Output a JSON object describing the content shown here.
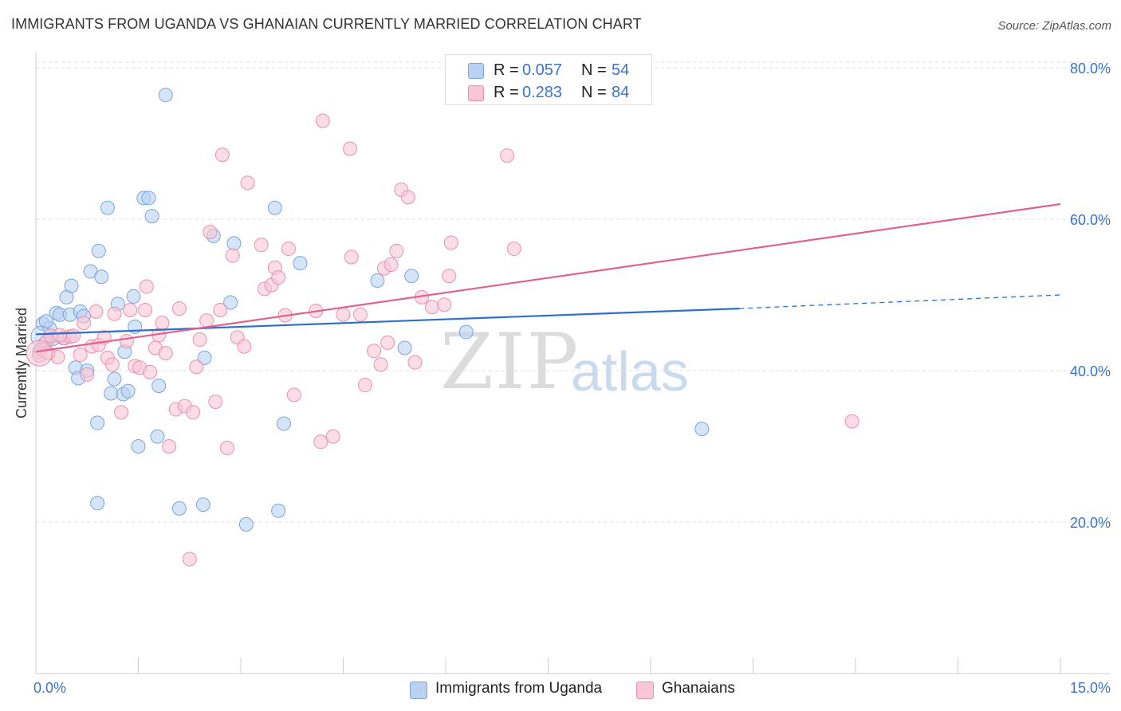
{
  "header": {
    "title": "IMMIGRANTS FROM UGANDA VS GHANAIAN CURRENTLY MARRIED CORRELATION CHART",
    "source": "Source: ZipAtlas.com"
  },
  "legend_top": {
    "rows": [
      {
        "r_label": "R =",
        "r_value": "0.057",
        "n_label": "N =",
        "n_value": "54"
      },
      {
        "r_label": "R =",
        "r_value": "0.283",
        "n_label": "N =",
        "n_value": "84"
      }
    ]
  },
  "legend_bottom": {
    "items": [
      "Immigrants from Uganda",
      "Ghanaians"
    ]
  },
  "watermark": {
    "zip": "ZIP",
    "atlas": "atlas"
  },
  "colors": {
    "uganda_fill": "#b9d2f2",
    "uganda_stroke": "#7aa6dc",
    "uganda_line": "#2e6fcc",
    "ghana_fill": "#f8c6d6",
    "ghana_stroke": "#ea90ae",
    "ghana_line": "#e0608e",
    "tick_label": "#3a74c8",
    "grid": "#dddddd"
  },
  "chart_data": {
    "type": "scatter",
    "title": "IMMIGRANTS FROM UGANDA VS GHANAIAN CURRENTLY MARRIED CORRELATION CHART",
    "xlabel": "",
    "ylabel": "Currently Married",
    "xlim": [
      0,
      15
    ],
    "ylim": [
      0,
      82
    ],
    "x_tick_labels": [
      "0.0%",
      "15.0%"
    ],
    "y_ticks": [
      20,
      40,
      60,
      80
    ],
    "y_tick_labels": [
      "20.0%",
      "40.0%",
      "60.0%",
      "80.0%"
    ],
    "grid": true,
    "legend_position": "top-center",
    "series": [
      {
        "name": "Immigrants from Uganda",
        "r": 0.057,
        "n": 54,
        "trend": {
          "x": [
            0,
            10.3
          ],
          "y": [
            44.8,
            48.2
          ],
          "dashed_to": [
            15,
            50
          ]
        },
        "points": [
          [
            0.05,
            42.5
          ],
          [
            0.1,
            46.2
          ],
          [
            0.12,
            43.5
          ],
          [
            0.2,
            45.6
          ],
          [
            0.25,
            44.2
          ],
          [
            0.3,
            47.6
          ],
          [
            0.35,
            47.4
          ],
          [
            0.4,
            44.3
          ],
          [
            0.45,
            49.7
          ],
          [
            0.5,
            47.4
          ],
          [
            0.52,
            51.2
          ],
          [
            0.58,
            40.4
          ],
          [
            0.62,
            39.0
          ],
          [
            0.65,
            47.8
          ],
          [
            0.7,
            47.2
          ],
          [
            0.75,
            40.0
          ],
          [
            0.8,
            53.1
          ],
          [
            0.9,
            33.1
          ],
          [
            0.92,
            55.8
          ],
          [
            0.96,
            52.4
          ],
          [
            1.05,
            61.5
          ],
          [
            1.1,
            37.0
          ],
          [
            1.15,
            38.9
          ],
          [
            1.2,
            48.8
          ],
          [
            1.28,
            36.9
          ],
          [
            1.3,
            42.5
          ],
          [
            1.35,
            37.3
          ],
          [
            1.43,
            49.8
          ],
          [
            1.45,
            45.8
          ],
          [
            1.5,
            30.0
          ],
          [
            1.58,
            62.8
          ],
          [
            1.65,
            62.8
          ],
          [
            1.7,
            60.4
          ],
          [
            1.78,
            31.3
          ],
          [
            1.8,
            38.0
          ],
          [
            1.9,
            76.4
          ],
          [
            0.9,
            22.5
          ],
          [
            2.1,
            21.8
          ],
          [
            2.45,
            22.3
          ],
          [
            2.47,
            41.7
          ],
          [
            2.6,
            57.8
          ],
          [
            2.85,
            49.0
          ],
          [
            2.9,
            56.8
          ],
          [
            3.08,
            19.7
          ],
          [
            3.5,
            61.5
          ],
          [
            3.55,
            21.5
          ],
          [
            3.63,
            33.0
          ],
          [
            3.87,
            54.2
          ],
          [
            5.0,
            51.9
          ],
          [
            5.4,
            43.0
          ],
          [
            5.5,
            52.5
          ],
          [
            6.3,
            45.1
          ],
          [
            9.75,
            32.3
          ],
          [
            0.15,
            46.5
          ]
        ]
      },
      {
        "name": "Ghanaians",
        "r": 0.283,
        "n": 84,
        "trend": {
          "x": [
            0,
            15
          ],
          "y": [
            42.5,
            62.0
          ]
        },
        "points": [
          [
            0.05,
            42.0
          ],
          [
            0.15,
            43.8
          ],
          [
            0.22,
            44.6
          ],
          [
            0.32,
            41.8
          ],
          [
            0.42,
            44.3
          ],
          [
            0.5,
            44.5
          ],
          [
            0.55,
            44.6
          ],
          [
            0.65,
            42.1
          ],
          [
            0.7,
            46.3
          ],
          [
            0.75,
            39.5
          ],
          [
            0.82,
            43.2
          ],
          [
            0.88,
            47.8
          ],
          [
            0.92,
            43.4
          ],
          [
            1.0,
            44.4
          ],
          [
            1.05,
            41.7
          ],
          [
            1.12,
            40.8
          ],
          [
            1.15,
            47.5
          ],
          [
            1.25,
            34.5
          ],
          [
            1.33,
            43.9
          ],
          [
            1.38,
            48.0
          ],
          [
            1.45,
            40.6
          ],
          [
            1.52,
            40.4
          ],
          [
            1.6,
            48.0
          ],
          [
            1.62,
            51.1
          ],
          [
            1.67,
            39.8
          ],
          [
            1.75,
            43.0
          ],
          [
            1.8,
            44.7
          ],
          [
            1.85,
            46.3
          ],
          [
            1.9,
            42.3
          ],
          [
            1.95,
            30.0
          ],
          [
            2.05,
            34.9
          ],
          [
            2.1,
            48.2
          ],
          [
            2.18,
            35.3
          ],
          [
            2.25,
            15.1
          ],
          [
            2.3,
            34.5
          ],
          [
            2.35,
            40.5
          ],
          [
            2.4,
            44.1
          ],
          [
            2.5,
            46.6
          ],
          [
            2.55,
            58.3
          ],
          [
            2.63,
            35.9
          ],
          [
            2.7,
            48.0
          ],
          [
            2.73,
            68.5
          ],
          [
            2.8,
            29.8
          ],
          [
            2.88,
            55.2
          ],
          [
            2.95,
            44.4
          ],
          [
            3.05,
            43.2
          ],
          [
            3.1,
            64.8
          ],
          [
            3.3,
            56.6
          ],
          [
            3.35,
            50.8
          ],
          [
            3.45,
            51.3
          ],
          [
            3.5,
            53.6
          ],
          [
            3.55,
            52.3
          ],
          [
            3.65,
            47.3
          ],
          [
            3.7,
            56.1
          ],
          [
            3.78,
            36.8
          ],
          [
            4.1,
            47.9
          ],
          [
            4.17,
            30.6
          ],
          [
            4.2,
            73.0
          ],
          [
            4.35,
            31.3
          ],
          [
            4.5,
            47.4
          ],
          [
            4.6,
            69.3
          ],
          [
            4.62,
            55.0
          ],
          [
            4.75,
            47.4
          ],
          [
            4.82,
            38.1
          ],
          [
            4.95,
            42.6
          ],
          [
            5.05,
            40.8
          ],
          [
            5.1,
            53.5
          ],
          [
            5.15,
            43.7
          ],
          [
            5.2,
            54.0
          ],
          [
            5.28,
            55.8
          ],
          [
            5.35,
            63.9
          ],
          [
            5.45,
            62.9
          ],
          [
            5.55,
            41.1
          ],
          [
            5.65,
            49.7
          ],
          [
            5.8,
            48.4
          ],
          [
            5.98,
            48.7
          ],
          [
            6.05,
            52.5
          ],
          [
            6.08,
            56.9
          ],
          [
            6.9,
            68.4
          ],
          [
            7.0,
            56.1
          ],
          [
            11.95,
            33.3
          ],
          [
            0.08,
            42.8
          ],
          [
            0.18,
            42.3
          ],
          [
            0.35,
            44.7
          ]
        ]
      }
    ]
  }
}
